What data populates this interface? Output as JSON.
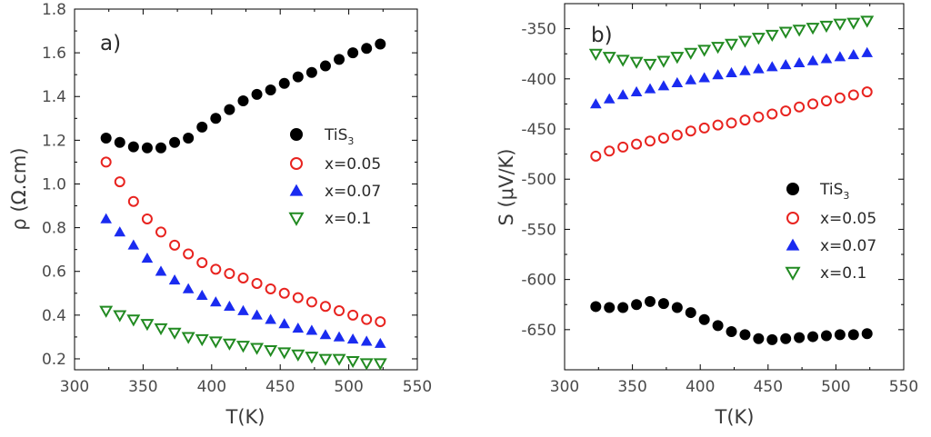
{
  "markers": {
    "s0": {
      "shape": "circle",
      "filled": true,
      "color": "#000000"
    },
    "s1": {
      "shape": "circle",
      "filled": false,
      "color": "#e8231f"
    },
    "s2": {
      "shape": "triangle-up",
      "filled": true,
      "color": "#1a2bf0"
    },
    "s3": {
      "shape": "triangle-down",
      "filled": false,
      "color": "#218a21"
    }
  },
  "chart_data": [
    {
      "type": "scatter",
      "panel_label": "a)",
      "xlabel": "T(K)",
      "ylabel": "ρ (Ω.cm)",
      "xlim": [
        300,
        550
      ],
      "ylim": [
        0.15,
        1.8
      ],
      "xticks": [
        300,
        350,
        400,
        450,
        500,
        550
      ],
      "yticks": [
        0.2,
        0.4,
        0.6,
        0.8,
        1.0,
        1.2,
        1.4,
        1.6,
        1.8
      ],
      "ytick_labels": [
        "0.2",
        "0.4",
        "0.6",
        "0.8",
        "1.0",
        "1.2",
        "1.4",
        "1.6",
        "1.8"
      ],
      "x": [
        323,
        333,
        343,
        353,
        363,
        373,
        383,
        393,
        403,
        413,
        423,
        433,
        443,
        453,
        463,
        473,
        483,
        493,
        503,
        513,
        523
      ],
      "legend_position": "center-right",
      "series": [
        {
          "name": "TiS",
          "name_sub": "3",
          "marker": "s0",
          "values": [
            1.21,
            1.19,
            1.17,
            1.165,
            1.165,
            1.19,
            1.21,
            1.26,
            1.3,
            1.34,
            1.38,
            1.41,
            1.43,
            1.46,
            1.49,
            1.51,
            1.54,
            1.57,
            1.6,
            1.62,
            1.64
          ]
        },
        {
          "name": "x=0.05",
          "name_sub": "",
          "marker": "s1",
          "values": [
            1.1,
            1.01,
            0.92,
            0.84,
            0.78,
            0.72,
            0.68,
            0.64,
            0.61,
            0.59,
            0.57,
            0.545,
            0.52,
            0.5,
            0.48,
            0.46,
            0.44,
            0.42,
            0.4,
            0.38,
            0.37
          ]
        },
        {
          "name": "x=0.07",
          "name_sub": "",
          "marker": "s2",
          "values": [
            0.84,
            0.78,
            0.72,
            0.66,
            0.6,
            0.56,
            0.52,
            0.49,
            0.46,
            0.44,
            0.42,
            0.4,
            0.38,
            0.36,
            0.34,
            0.33,
            0.31,
            0.3,
            0.29,
            0.28,
            0.27
          ]
        },
        {
          "name": "x=0.1",
          "name_sub": "",
          "marker": "s3",
          "values": [
            0.42,
            0.4,
            0.38,
            0.36,
            0.34,
            0.32,
            0.3,
            0.29,
            0.28,
            0.27,
            0.26,
            0.25,
            0.24,
            0.23,
            0.22,
            0.21,
            0.2,
            0.2,
            0.19,
            0.18,
            0.18
          ]
        }
      ]
    },
    {
      "type": "scatter",
      "panel_label": "b)",
      "xlabel": "T(K)",
      "ylabel": "S (μV/K)",
      "xlim": [
        300,
        550
      ],
      "ylim": [
        -690,
        -325
      ],
      "xticks": [
        300,
        350,
        400,
        450,
        500,
        550
      ],
      "yticks": [
        -650,
        -600,
        -550,
        -500,
        -450,
        -400,
        -350
      ],
      "ytick_labels": [
        "-650",
        "-600",
        "-550",
        "-500",
        "-450",
        "-400",
        "-350"
      ],
      "x": [
        323,
        333,
        343,
        353,
        363,
        373,
        383,
        393,
        403,
        413,
        423,
        433,
        443,
        453,
        463,
        473,
        483,
        493,
        503,
        513,
        523
      ],
      "legend_position": "lower-right",
      "series": [
        {
          "name": "TiS",
          "name_sub": "3",
          "marker": "s0",
          "values": [
            -627,
            -628,
            -628,
            -625,
            -622,
            -624,
            -628,
            -633,
            -640,
            -646,
            -652,
            -655,
            -659,
            -660,
            -659,
            -658,
            -657,
            -656,
            -655,
            -655,
            -654
          ]
        },
        {
          "name": "x=0.05",
          "name_sub": "",
          "marker": "s1",
          "values": [
            -477,
            -472,
            -468,
            -465,
            -462,
            -459,
            -456,
            -452,
            -449,
            -446,
            -444,
            -441,
            -438,
            -435,
            -432,
            -428,
            -425,
            -422,
            -419,
            -416,
            -413
          ]
        },
        {
          "name": "x=0.07",
          "name_sub": "",
          "marker": "s2",
          "values": [
            -425,
            -420,
            -416,
            -413,
            -410,
            -407,
            -404,
            -401,
            -399,
            -396,
            -394,
            -392,
            -390,
            -388,
            -386,
            -384,
            -382,
            -380,
            -378,
            -376,
            -374
          ]
        },
        {
          "name": "x=0.1",
          "name_sub": "",
          "marker": "s3",
          "values": [
            -375,
            -378,
            -381,
            -383,
            -385,
            -382,
            -378,
            -374,
            -371,
            -368,
            -365,
            -362,
            -359,
            -356,
            -353,
            -351,
            -349,
            -347,
            -345,
            -344,
            -342
          ]
        }
      ]
    }
  ]
}
